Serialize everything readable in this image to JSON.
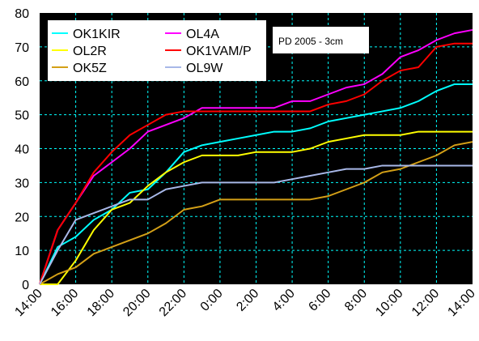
{
  "chart_data": {
    "type": "line",
    "title": "",
    "xlabel": "",
    "ylabel": "",
    "annotation": "PD 2005 - 3cm",
    "x_ticks": [
      "14:00",
      "16:00",
      "18:00",
      "20:00",
      "22:00",
      "0:00",
      "2:00",
      "4:00",
      "6:00",
      "8:00",
      "10:00",
      "12:00",
      "14:00"
    ],
    "x_range_hours": [
      0,
      24
    ],
    "y_ticks": [
      0,
      10,
      20,
      30,
      40,
      50,
      60,
      70,
      80
    ],
    "ylim": [
      0,
      80
    ],
    "grid": true,
    "plot_background": "#000000",
    "grid_color": "#00ffff",
    "legend_placement": "top-left",
    "series": [
      {
        "name": "OK1KIR",
        "color": "#00ffff",
        "x": [
          0,
          1,
          2,
          3,
          4,
          5,
          6,
          7,
          8,
          9,
          10,
          11,
          12,
          13,
          14,
          15,
          16,
          17,
          18,
          19,
          20,
          21,
          22,
          23,
          24
        ],
        "values": [
          0,
          11,
          14,
          19,
          22,
          27,
          28,
          33,
          39,
          41,
          42,
          43,
          44,
          45,
          45,
          46,
          48,
          49,
          50,
          51,
          52,
          54,
          57,
          59,
          59
        ]
      },
      {
        "name": "OL4A",
        "color": "#ff00ff",
        "x": [
          0,
          1,
          2,
          3,
          4,
          5,
          6,
          7,
          8,
          9,
          10,
          11,
          12,
          13,
          14,
          15,
          16,
          17,
          18,
          19,
          20,
          21,
          22,
          23,
          24
        ],
        "values": [
          0,
          16,
          24,
          32,
          36,
          40,
          45,
          47,
          49,
          52,
          52,
          52,
          52,
          52,
          54,
          54,
          56,
          58,
          59,
          62,
          67,
          69,
          72,
          74,
          75
        ]
      },
      {
        "name": "OL2R",
        "color": "#ffff00",
        "x": [
          0,
          1,
          2,
          3,
          4,
          5,
          6,
          7,
          8,
          9,
          10,
          11,
          12,
          13,
          14,
          15,
          16,
          17,
          18,
          19,
          20,
          21,
          22,
          23,
          24
        ],
        "values": [
          0,
          0,
          7,
          16,
          22,
          24,
          29,
          33,
          36,
          38,
          38,
          38,
          39,
          39,
          39,
          40,
          42,
          43,
          44,
          44,
          44,
          45,
          45,
          45,
          45
        ]
      },
      {
        "name": "OK1VAM/P",
        "color": "#ff0000",
        "x": [
          0,
          1,
          2,
          3,
          4,
          5,
          6,
          7,
          8,
          9,
          10,
          11,
          12,
          13,
          14,
          15,
          16,
          17,
          18,
          19,
          20,
          21,
          22,
          23,
          24
        ],
        "values": [
          0,
          16,
          24,
          33,
          39,
          44,
          47,
          50,
          51,
          51,
          51,
          51,
          51,
          51,
          51,
          51,
          53,
          54,
          56,
          60,
          63,
          64,
          70,
          71,
          71
        ]
      },
      {
        "name": "OK5Z",
        "color": "#d4a017",
        "x": [
          0,
          1,
          2,
          3,
          4,
          5,
          6,
          7,
          8,
          9,
          10,
          11,
          12,
          13,
          14,
          15,
          16,
          17,
          18,
          19,
          20,
          21,
          22,
          23,
          24
        ],
        "values": [
          0,
          3,
          5,
          9,
          11,
          13,
          15,
          18,
          22,
          23,
          25,
          25,
          25,
          25,
          25,
          25,
          26,
          28,
          30,
          33,
          34,
          36,
          38,
          41,
          42
        ]
      },
      {
        "name": "OL9W",
        "color": "#a8b8e8",
        "x": [
          0,
          1,
          2,
          3,
          4,
          5,
          6,
          7,
          8,
          9,
          10,
          11,
          12,
          13,
          14,
          15,
          16,
          17,
          18,
          19,
          20,
          21,
          22,
          23,
          24
        ],
        "values": [
          0,
          10,
          19,
          21,
          23,
          25,
          25,
          28,
          29,
          30,
          30,
          30,
          30,
          30,
          31,
          32,
          33,
          34,
          34,
          35,
          35,
          35,
          35,
          35,
          35
        ]
      }
    ]
  }
}
